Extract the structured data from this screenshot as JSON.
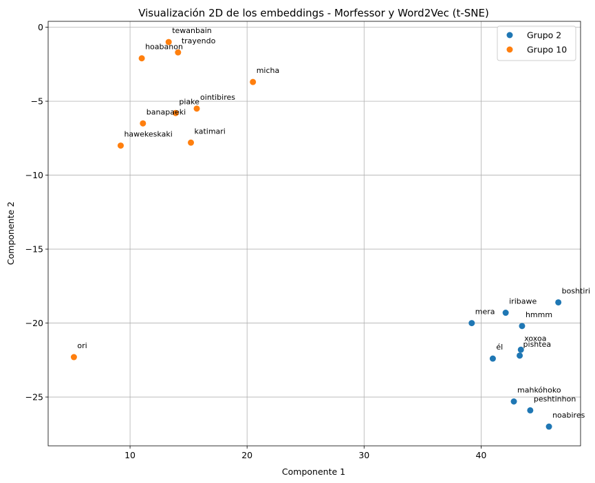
{
  "chart_data": {
    "type": "scatter",
    "title": "Visualización 2D de los embeddings - Morfessor y Word2Vec (t-SNE)",
    "xlabel": "Componente 1",
    "ylabel": "Componente 2",
    "xlim": [
      3,
      48.5
    ],
    "ylim": [
      -28.3,
      0.4
    ],
    "xticks": [
      10,
      20,
      30,
      40
    ],
    "xtick_labels": [
      "10",
      "20",
      "30",
      "40"
    ],
    "yticks": [
      0,
      -5,
      -10,
      -15,
      -20,
      -25
    ],
    "ytick_labels": [
      "0",
      "−5",
      "−10",
      "−15",
      "−20",
      "−25"
    ],
    "grid": true,
    "legend_position": "top-right",
    "series": [
      {
        "name": "Grupo 2",
        "color": "#1f77b4",
        "points": [
          {
            "label": "boshtiri",
            "x": 46.6,
            "y": -18.6
          },
          {
            "label": "iribawe",
            "x": 42.1,
            "y": -19.3
          },
          {
            "label": "mera",
            "x": 39.2,
            "y": -20.0
          },
          {
            "label": "hmmm",
            "x": 43.5,
            "y": -20.2
          },
          {
            "label": "xoxoa",
            "x": 43.4,
            "y": -21.8
          },
          {
            "label": "pishtea",
            "x": 43.3,
            "y": -22.2
          },
          {
            "label": "él",
            "x": 41.0,
            "y": -22.4
          },
          {
            "label": "mahkóhoko",
            "x": 42.8,
            "y": -25.3
          },
          {
            "label": "peshtinhon",
            "x": 44.2,
            "y": -25.9
          },
          {
            "label": "noabires",
            "x": 45.8,
            "y": -27.0
          }
        ]
      },
      {
        "name": "Grupo 10",
        "color": "#ff7f0e",
        "points": [
          {
            "label": "tewanbain",
            "x": 13.3,
            "y": -1.0
          },
          {
            "label": "trayendo",
            "x": 14.1,
            "y": -1.7
          },
          {
            "label": "hoabanon",
            "x": 11.0,
            "y": -2.1
          },
          {
            "label": "micha",
            "x": 20.5,
            "y": -3.7
          },
          {
            "label": "ointibires",
            "x": 15.7,
            "y": -5.5
          },
          {
            "label": "piake",
            "x": 13.9,
            "y": -5.8
          },
          {
            "label": "banapaeki",
            "x": 11.1,
            "y": -6.5
          },
          {
            "label": "katimari",
            "x": 15.2,
            "y": -7.8
          },
          {
            "label": "hawekeskaki",
            "x": 9.2,
            "y": -8.0
          },
          {
            "label": "ori",
            "x": 5.2,
            "y": -22.3
          }
        ]
      }
    ]
  }
}
